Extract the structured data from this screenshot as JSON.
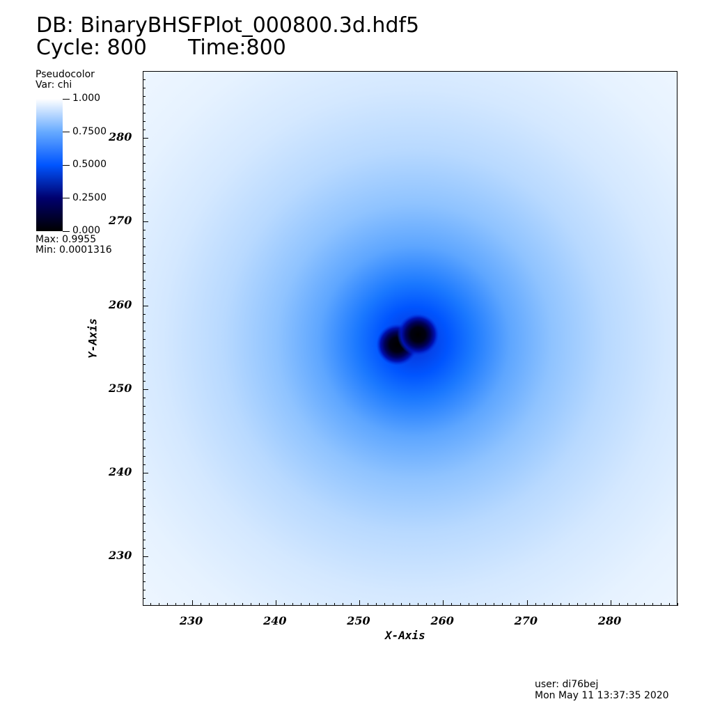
{
  "header": {
    "db_line": "DB: BinaryBHSFPlot_000800.3d.hdf5",
    "cycle_label": "Cycle: 800",
    "time_label": "Time:800"
  },
  "legend": {
    "plot_type": "Pseudocolor",
    "var_label": "Var: chi",
    "max_label": "Max:  0.9955",
    "min_label": "Min:  0.0001316",
    "colormap": [
      "#000000",
      "#00006e",
      "#0055ff",
      "#66aaff",
      "#ffffff"
    ],
    "ticks": [
      {
        "value": 1.0,
        "label": "1.000"
      },
      {
        "value": 0.75,
        "label": "0.7500"
      },
      {
        "value": 0.5,
        "label": "0.5000"
      },
      {
        "value": 0.25,
        "label": "0.2500"
      },
      {
        "value": 0.0,
        "label": "0.000"
      }
    ]
  },
  "chart_data": {
    "type": "heatmap",
    "title": "",
    "xlabel": "X-Axis",
    "ylabel": "Y-Axis",
    "variable": "chi",
    "xlim": [
      224.1,
      288.0
    ],
    "ylim": [
      224.1,
      288.0
    ],
    "x_ticks": [
      230,
      240,
      250,
      260,
      270,
      280
    ],
    "y_ticks": [
      230,
      240,
      250,
      260,
      270,
      280
    ],
    "x_tick_labels": [
      "230",
      "240",
      "250",
      "260",
      "270",
      "280"
    ],
    "y_tick_labels": [
      "230",
      "240",
      "250",
      "260",
      "270",
      "280"
    ],
    "minor_tick_step": 1,
    "value_range": [
      0.0001316,
      0.9955
    ],
    "minima": [
      {
        "name": "bh-1",
        "x": 254.5,
        "y": 255.3
      },
      {
        "name": "bh-2",
        "x": 257.0,
        "y": 256.5
      }
    ]
  },
  "footer": {
    "user": "user: di76bej",
    "date": "Mon May 11 13:37:35 2020"
  }
}
